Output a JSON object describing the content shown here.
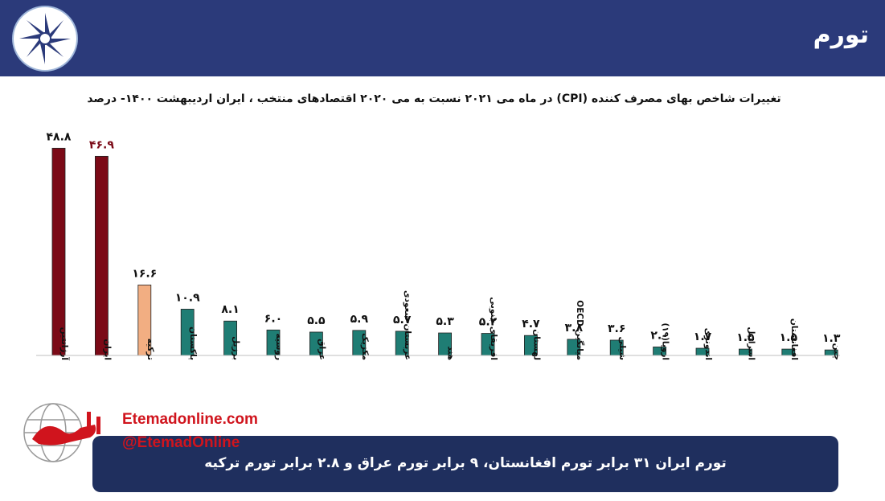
{
  "header": {
    "title": "تورم"
  },
  "chart_data": {
    "type": "bar",
    "title": "تغییرات شاخص بهای مصرف کننده (CPI) در ماه می ۲۰۲۱ نسبت به می ۲۰۲۰ اقتصادهای منتخب ، ایران اردیبهشت ۱۴۰۰- درصد",
    "categories": [
      "آرژانتین",
      "ایران",
      "ترکیه",
      "پاکستان",
      "برزیل",
      "روسیه",
      "عراق",
      "مکزیک",
      "عربستان سعودی",
      "هند",
      "افریقای جنوبی",
      "لهستان",
      "میانگین OECD",
      "شیلی",
      "اروپا(۱۹)",
      "اندونزی",
      "اسرائیل",
      "افغانستان",
      "چین"
    ],
    "values": [
      48.8,
      46.9,
      16.6,
      10.9,
      8.1,
      6.0,
      5.5,
      5.9,
      5.7,
      5.3,
      5.2,
      4.7,
      3.8,
      3.6,
      2.0,
      1.7,
      1.5,
      1.5,
      1.3
    ],
    "value_labels": [
      "۴۸.۸",
      "۴۶.۹",
      "۱۶.۶",
      "۱۰.۹",
      "۸.۱",
      "۶.۰",
      "۵.۵",
      "۵.۹",
      "۵.۷",
      "۵.۳",
      "۵.۲",
      "۴.۷",
      "۳.۸",
      "۳.۶",
      "۲.۰",
      "۱.۷",
      "۱.۵",
      "۱.۵",
      "۱.۳"
    ],
    "bar_colors": [
      "#7b0a17",
      "#7b0a17",
      "#f2ae82",
      "#1f7d74",
      "#1f7d74",
      "#1f7d74",
      "#1f7d74",
      "#1f7d74",
      "#1f7d74",
      "#1f7d74",
      "#1f7d74",
      "#1f7d74",
      "#1f7d74",
      "#1f7d74",
      "#1f7d74",
      "#1f7d74",
      "#1f7d74",
      "#1f7d74",
      "#1f7d74"
    ],
    "label_colors": [
      "#111111",
      "#7b0a17",
      "#111111",
      "#111111",
      "#111111",
      "#111111",
      "#111111",
      "#111111",
      "#111111",
      "#111111",
      "#111111",
      "#111111",
      "#111111",
      "#111111",
      "#111111",
      "#111111",
      "#111111",
      "#111111",
      "#111111"
    ],
    "ylim": [
      0,
      50
    ],
    "grid": false
  },
  "watermark": {
    "site": "Etemadonline.com",
    "handle": "@EtemadOnline"
  },
  "note": {
    "text": "تورم ایران ۳۱ برابر تورم افغانستان، ۹ برابر تورم عراق و ۲.۸ برابر تورم ترکیه"
  }
}
